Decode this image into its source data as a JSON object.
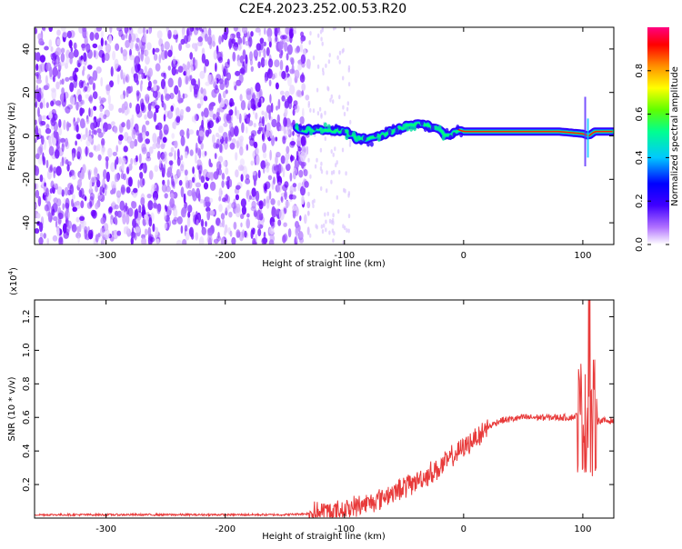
{
  "title": "C2E4.2023.252.00.53.R20",
  "chart_data": [
    {
      "type": "heatmap",
      "xlabel": "Height of straight line (km)",
      "ylabel": "Frequency (Hz)",
      "xlim": [
        -360,
        126
      ],
      "ylim": [
        -50,
        50
      ],
      "xticks": [
        -300,
        -200,
        -100,
        0,
        100
      ],
      "yticks": [
        -40,
        -20,
        0,
        20,
        40
      ],
      "colorbar": {
        "label": "Normalized spectral amplitude",
        "range": [
          0,
          1
        ],
        "ticks": [
          "0.0",
          "0.2",
          "0.4",
          "0.6",
          "0.8"
        ],
        "colors": [
          "#ffffff",
          "#8a2be2",
          "#3c00ff",
          "#0000ff",
          "#00c8ff",
          "#00ff80",
          "#80ff00",
          "#ffff00",
          "#ff8000",
          "#ff0000",
          "#ff0080"
        ]
      },
      "noise_region_x": [
        -360,
        -100
      ],
      "ridge_center_freq_hz": [
        [
          -140,
          3
        ],
        [
          -120,
          3
        ],
        [
          -100,
          2
        ],
        [
          -90,
          -1
        ],
        [
          -80,
          -2
        ],
        [
          -70,
          0
        ],
        [
          -60,
          2
        ],
        [
          -50,
          4
        ],
        [
          -40,
          6
        ],
        [
          -30,
          5
        ],
        [
          -20,
          2
        ],
        [
          -15,
          0
        ],
        [
          -10,
          1
        ],
        [
          -5,
          3
        ],
        [
          0,
          2
        ],
        [
          20,
          2
        ],
        [
          50,
          2
        ],
        [
          80,
          2
        ],
        [
          100,
          1
        ],
        [
          105,
          0
        ],
        [
          110,
          2
        ],
        [
          126,
          2
        ]
      ]
    },
    {
      "type": "line",
      "xlabel": "Height of straight line (km)",
      "ylabel": "SNR (10 * v/v)",
      "y_exponent_label": "(x10",
      "y_exponent_sup": "4",
      "y_exponent_close": ")",
      "xlim": [
        -360,
        126
      ],
      "ylim": [
        0,
        1.3
      ],
      "xticks": [
        -300,
        -200,
        -100,
        0,
        100
      ],
      "yticks": [
        0.2,
        0.4,
        0.6,
        0.8,
        1.0,
        1.2
      ],
      "ytick_labels": [
        "0.2",
        "0.4",
        "0.6",
        "0.8",
        "1.0",
        "1.2"
      ],
      "color": "#e83a3a",
      "series": [
        {
          "x": [
            -360,
            -300,
            -250,
            -200,
            -150,
            -120,
            -100,
            -80,
            -60,
            -40,
            -20,
            0,
            20,
            30,
            50,
            70,
            90,
            100,
            103,
            105,
            107,
            109,
            112,
            126
          ],
          "y": [
            0.02,
            0.02,
            0.02,
            0.02,
            0.02,
            0.03,
            0.05,
            0.09,
            0.15,
            0.22,
            0.3,
            0.42,
            0.54,
            0.58,
            0.6,
            0.6,
            0.6,
            0.62,
            0.5,
            0.75,
            0.45,
            0.62,
            0.58,
            0.58
          ]
        }
      ]
    }
  ]
}
